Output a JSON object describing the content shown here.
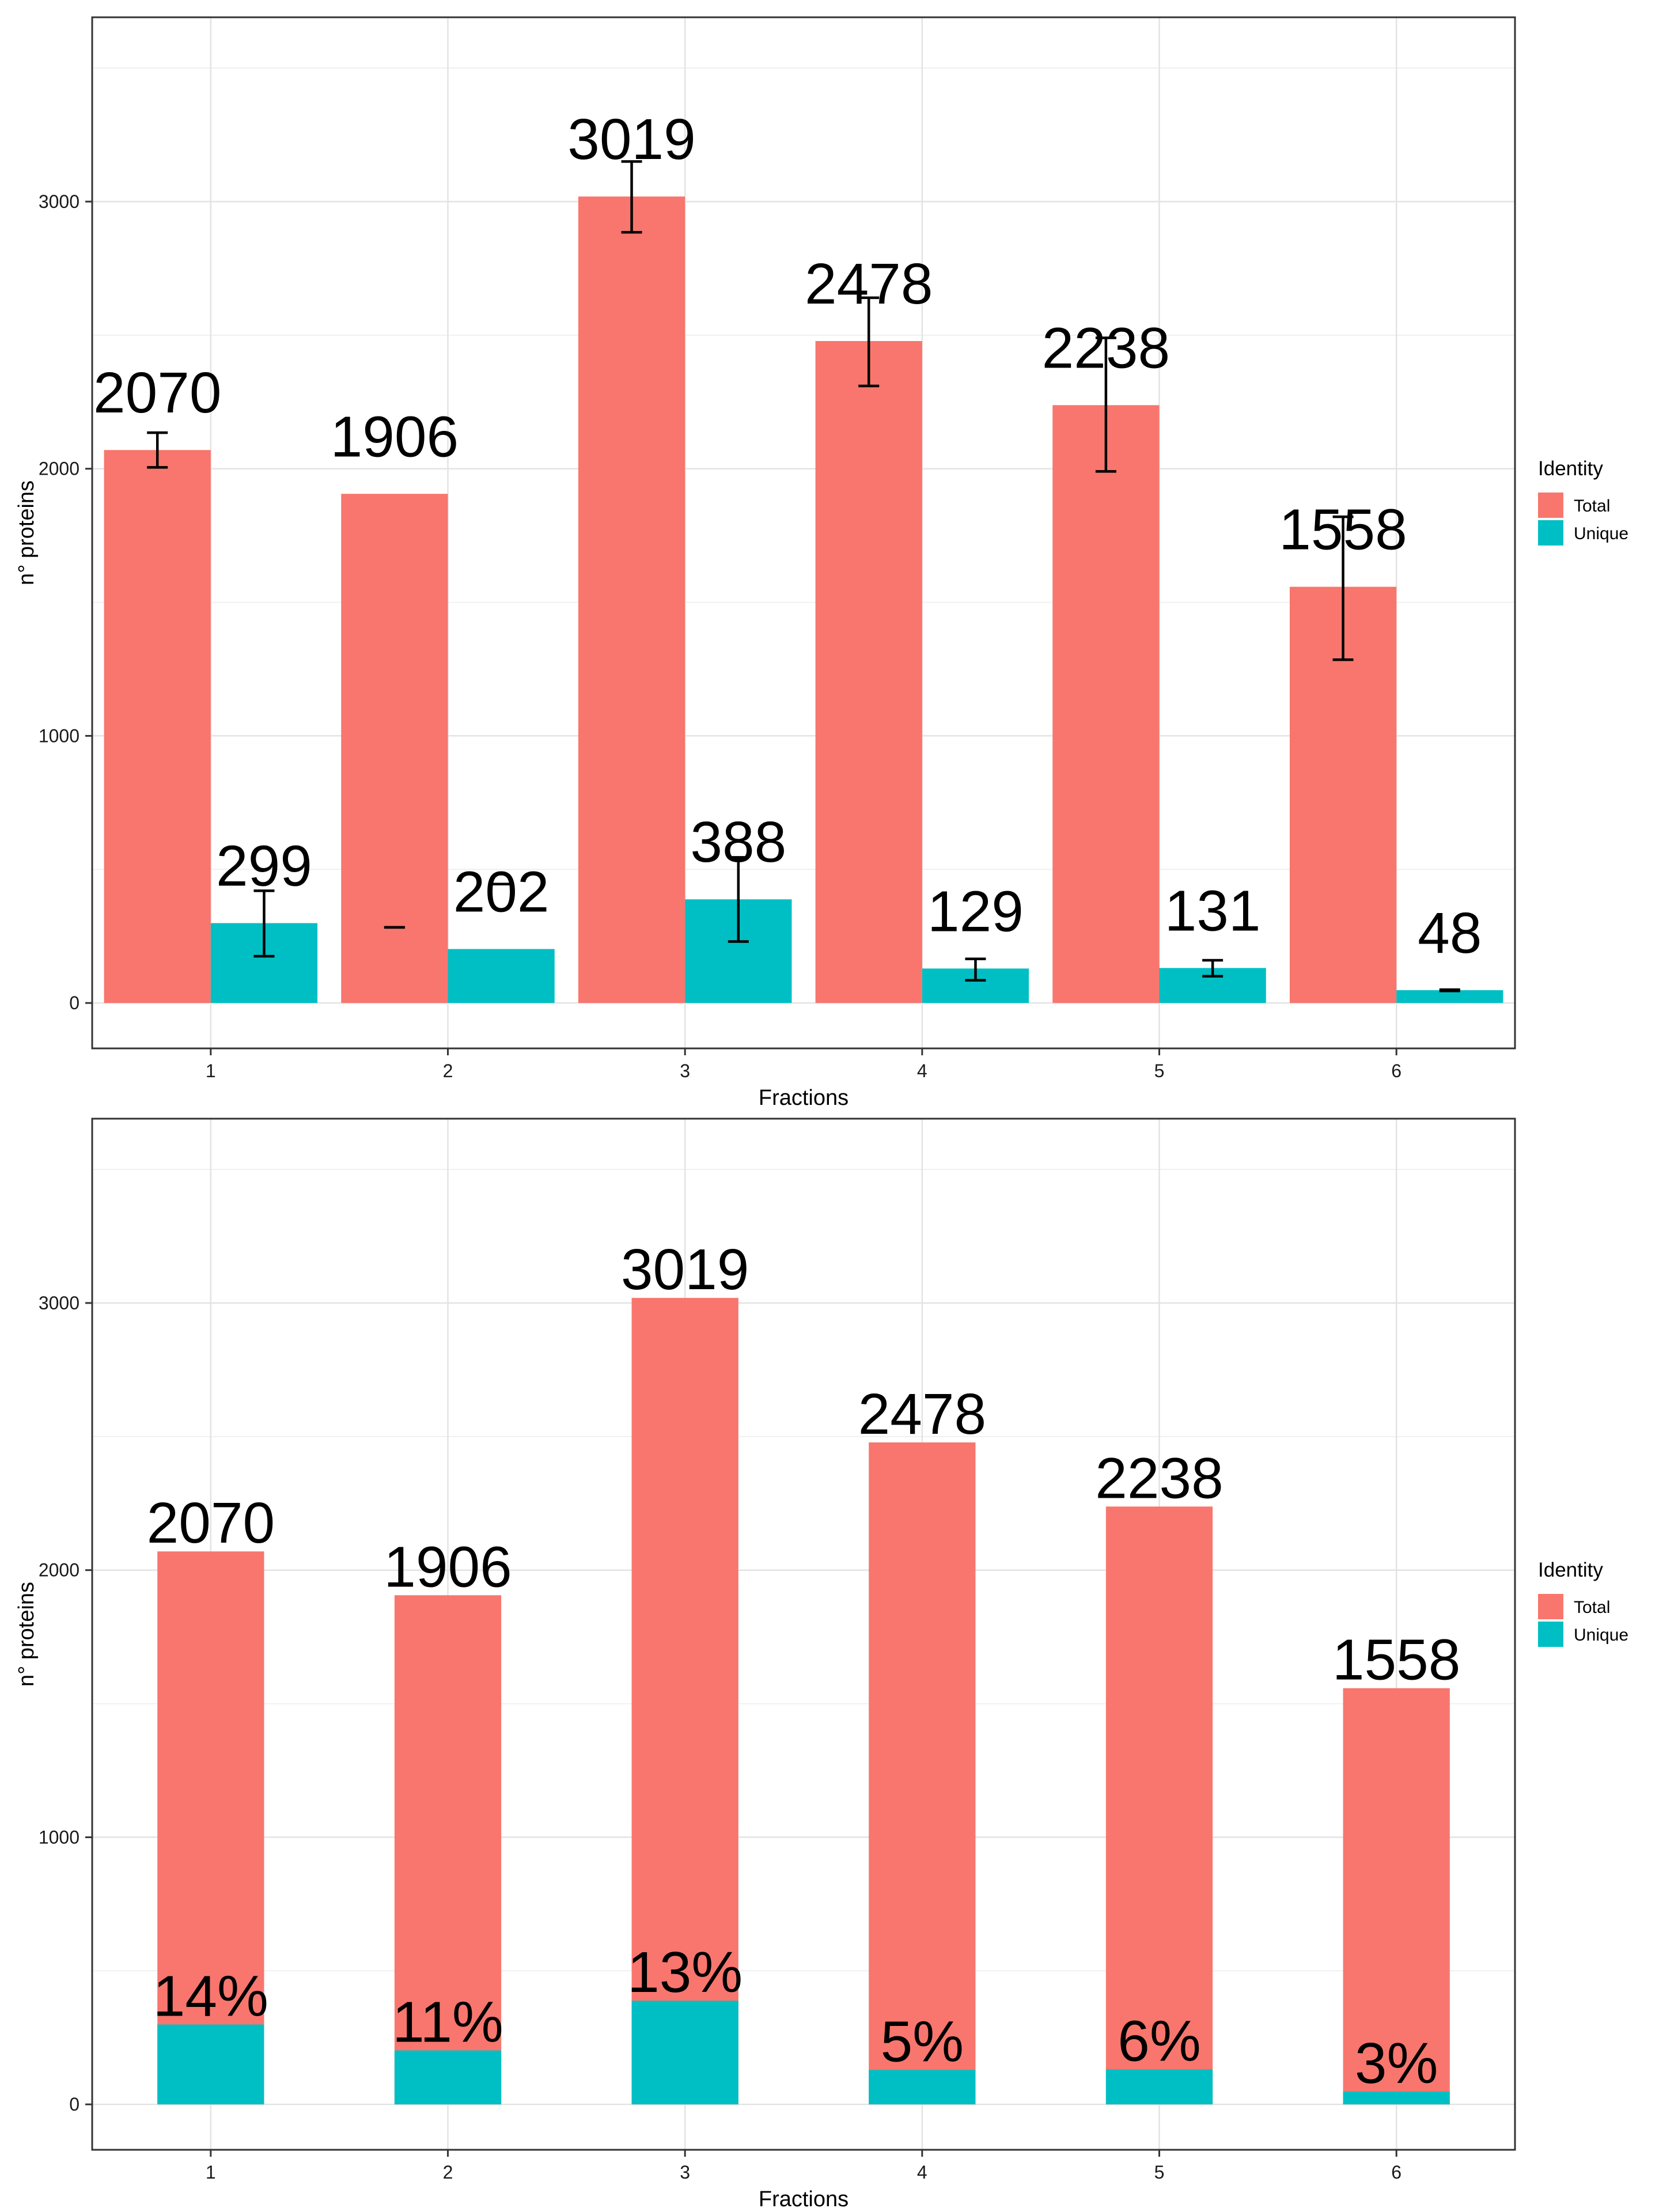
{
  "chart_data": [
    {
      "type": "bar",
      "barmode": "grouped",
      "title": "",
      "xlabel": "Fractions",
      "ylabel": "n° proteins",
      "ylim": [
        -170,
        3690
      ],
      "yticks": [
        0,
        1000,
        2000,
        3000
      ],
      "grid": true,
      "categories": [
        "1",
        "2",
        "3",
        "4",
        "5",
        "6"
      ],
      "series": [
        {
          "name": "Total",
          "color": "#F8766D",
          "values": [
            2070,
            1906,
            3019,
            2478,
            2238,
            1558
          ],
          "labels": [
            "2070",
            "1906",
            "3019",
            "2478",
            "2238",
            "1558"
          ],
          "error_low": [
            2005,
            283,
            2885,
            2310,
            1990,
            1285
          ],
          "error_high": [
            2135,
            283,
            3150,
            2640,
            2490,
            1820
          ]
        },
        {
          "name": "Unique",
          "color": "#00BFC4",
          "values": [
            299,
            202,
            388,
            129,
            131,
            48
          ],
          "labels": [
            "299",
            "202",
            "388",
            "129",
            "131",
            "48"
          ],
          "error_low": [
            175,
            445,
            230,
            85,
            100,
            45
          ],
          "error_high": [
            420,
            445,
            545,
            165,
            160,
            50
          ]
        }
      ],
      "legend": {
        "title": "Identity",
        "position": "right"
      }
    },
    {
      "type": "bar",
      "barmode": "overlay",
      "title": "",
      "xlabel": "Fractions",
      "ylabel": "n° proteins",
      "ylim": [
        -170,
        3690
      ],
      "yticks": [
        0,
        1000,
        2000,
        3000
      ],
      "grid": true,
      "categories": [
        "1",
        "2",
        "3",
        "4",
        "5",
        "6"
      ],
      "series": [
        {
          "name": "Total",
          "color": "#F8766D",
          "values": [
            2070,
            1906,
            3019,
            2478,
            2238,
            1558
          ],
          "labels": [
            "2070",
            "1906",
            "3019",
            "2478",
            "2238",
            "1558"
          ]
        },
        {
          "name": "Unique",
          "color": "#00BFC4",
          "values": [
            299,
            202,
            388,
            129,
            131,
            48
          ],
          "labels": [
            "14%",
            "11%",
            "13%",
            "5%",
            "6%",
            "3%"
          ]
        }
      ],
      "legend": {
        "title": "Identity",
        "position": "right"
      }
    }
  ]
}
